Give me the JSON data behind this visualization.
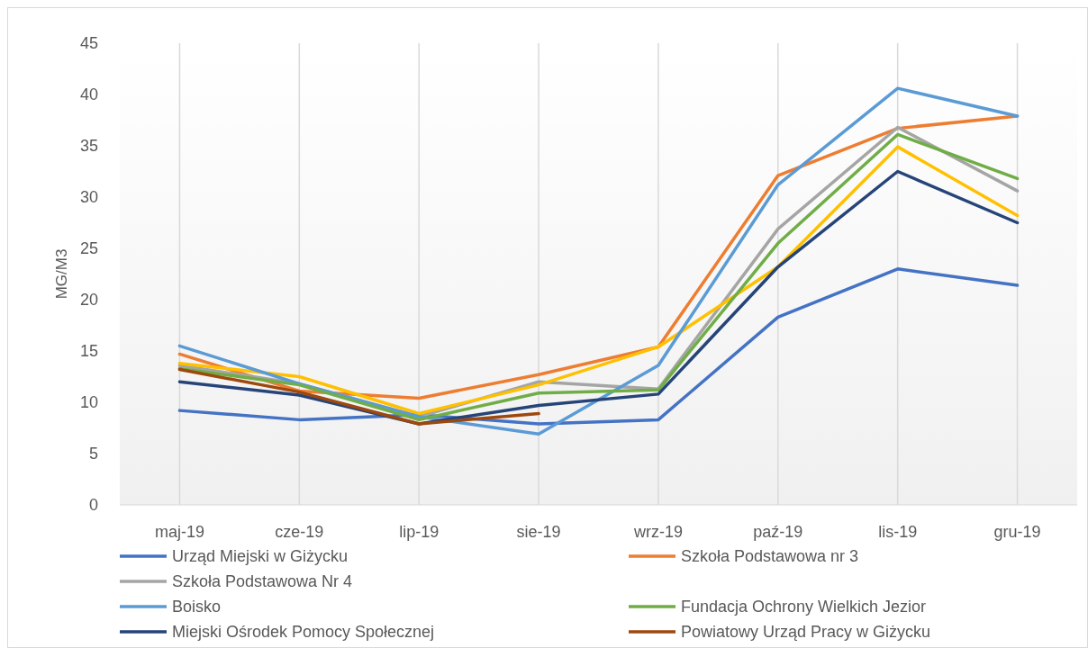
{
  "chart_data": {
    "type": "line",
    "ylabel": "MG/M3",
    "categories": [
      "maj-19",
      "cze-19",
      "lip-19",
      "sie-19",
      "wrz-19",
      "paź-19",
      "lis-19",
      "gru-19"
    ],
    "ylim": [
      0,
      45
    ],
    "yticks": [
      0,
      5,
      10,
      15,
      20,
      25,
      30,
      35,
      40,
      45
    ],
    "grid": "x",
    "legend": "bottom",
    "marker": "none",
    "line_style": "solid",
    "series": [
      {
        "name": "Urząd Miejski w Giżycku",
        "color": "#4472c4",
        "values": [
          9.2,
          8.3,
          8.8,
          7.9,
          8.3,
          18.3,
          23.0,
          21.4
        ]
      },
      {
        "name": "Szkoła Podstawowa nr 3",
        "color": "#ed7d31",
        "values": [
          14.7,
          11.1,
          10.4,
          12.7,
          15.4,
          32.1,
          36.7,
          37.9
        ]
      },
      {
        "name": "Szkoła Podstawowa Nr 4",
        "color": "#a5a5a5",
        "values": [
          13.6,
          11.8,
          8.6,
          12.0,
          11.3,
          26.9,
          36.8,
          30.6
        ]
      },
      {
        "color": "#ffc000",
        "values": [
          13.8,
          12.5,
          8.9,
          11.7,
          15.4,
          23.2,
          34.9,
          28.2
        ]
      },
      {
        "name": "Boisko",
        "color": "#5b9bd5",
        "values": [
          15.5,
          11.8,
          8.6,
          6.9,
          13.6,
          31.2,
          40.6,
          37.9
        ]
      },
      {
        "name": "Fundacja Ochrony Wielkich Jezior",
        "color": "#70ad47",
        "values": [
          13.3,
          11.7,
          8.3,
          10.9,
          11.2,
          25.5,
          36.1,
          31.8
        ]
      },
      {
        "name": "Miejski Ośrodek Pomocy Społecznej",
        "color": "#264478",
        "values": [
          12.0,
          10.7,
          7.9,
          9.7,
          10.8,
          23.2,
          32.5,
          27.5
        ]
      },
      {
        "name": "Powiatowy Urząd Pracy w Giżycku",
        "color": "#9e480e",
        "values": [
          13.2,
          11.0,
          7.9,
          8.9,
          null,
          null,
          null,
          null
        ]
      }
    ]
  }
}
